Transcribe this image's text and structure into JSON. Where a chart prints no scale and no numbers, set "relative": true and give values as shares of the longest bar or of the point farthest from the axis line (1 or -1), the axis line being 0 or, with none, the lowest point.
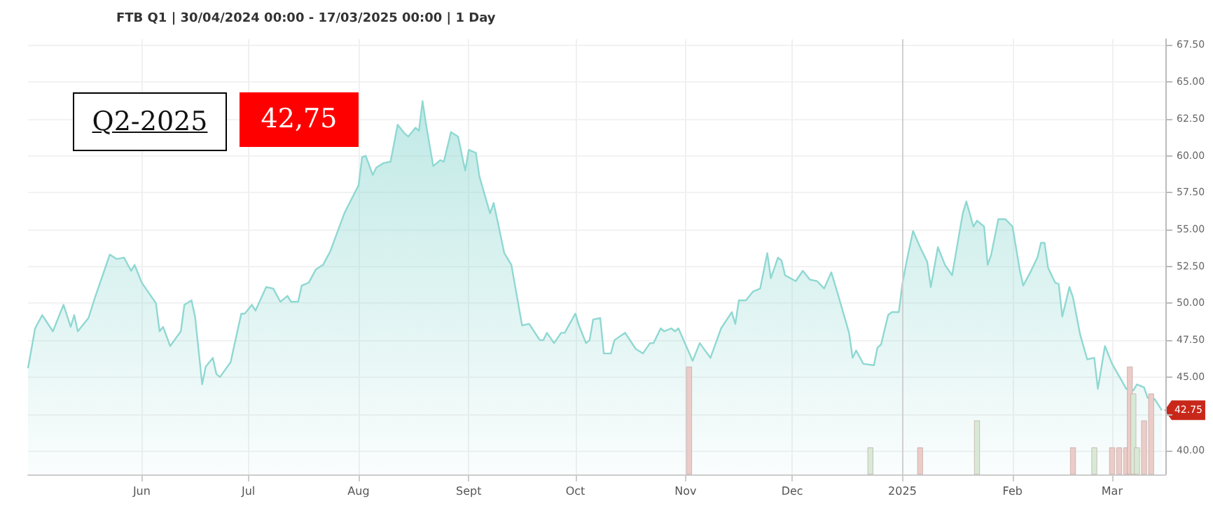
{
  "chart_data": [
    {
      "type": "area",
      "title": "FTB Q1 | 30/04/2024 00:00 - 17/03/2025 00:00 | 1 Day",
      "annotations": [
        "Q2-2025",
        "42,75",
        {
          "text": "42.75",
          "x": "2025-03-15",
          "y": 42.75
        }
      ],
      "xlim": [
        "2024-04-30",
        "2025-03-16"
      ],
      "xticks": [
        {
          "value": "2024-06-01",
          "label": "Jun"
        },
        {
          "value": "2024-07-01",
          "label": "Jul"
        },
        {
          "value": "2024-08-01",
          "label": "Aug"
        },
        {
          "value": "2024-09-01",
          "label": "Sept"
        },
        {
          "value": "2024-10-01",
          "label": "Oct"
        },
        {
          "value": "2024-11-01",
          "label": "Nov"
        },
        {
          "value": "2024-12-01",
          "label": "Dec"
        },
        {
          "value": "2025-01-01",
          "label": "2025"
        },
        {
          "value": "2025-02-01",
          "label": "Feb"
        },
        {
          "value": "2025-03-01",
          "label": "Mar"
        }
      ],
      "ylim": [
        38.4,
        67.9
      ],
      "yticks": [
        {
          "value": 40,
          "label": "40.00"
        },
        {
          "value": 42.5,
          "label": null
        },
        {
          "value": 45,
          "label": "45.00"
        },
        {
          "value": 47.5,
          "label": "47.50"
        },
        {
          "value": 50,
          "label": "50.00"
        },
        {
          "value": 52.5,
          "label": "52.50"
        },
        {
          "value": 55,
          "label": "55.00"
        },
        {
          "value": 57.5,
          "label": "57.50"
        },
        {
          "value": 60,
          "label": "60.00"
        },
        {
          "value": 62.5,
          "label": "62.50"
        },
        {
          "value": 65,
          "label": "65.00"
        },
        {
          "value": 67.5,
          "label": "67.50"
        }
      ],
      "grid": true,
      "ref_lines": [
        {
          "axis": "x",
          "value": "2025-01-01",
          "color": "#d0d0d0"
        }
      ],
      "series": [
        {
          "color": "#8fd8d2",
          "x": [
            "2024-04-30",
            "2024-05-02",
            "2024-05-04",
            "2024-05-07",
            "2024-05-10",
            "2024-05-12",
            "2024-05-13",
            "2024-05-14",
            "2024-05-17",
            "2024-05-19",
            "2024-05-23",
            "2024-05-25",
            "2024-05-27",
            "2024-05-29",
            "2024-05-30",
            "2024-06-01",
            "2024-06-05",
            "2024-06-06",
            "2024-06-07",
            "2024-06-09",
            "2024-06-12",
            "2024-06-13",
            "2024-06-15",
            "2024-06-16",
            "2024-06-18",
            "2024-06-19",
            "2024-06-21",
            "2024-06-22",
            "2024-06-23",
            "2024-06-26",
            "2024-06-29",
            "2024-06-30",
            "2024-07-02",
            "2024-07-03",
            "2024-07-06",
            "2024-07-08",
            "2024-07-10",
            "2024-07-12",
            "2024-07-13",
            "2024-07-15",
            "2024-07-16",
            "2024-07-18",
            "2024-07-20",
            "2024-07-22",
            "2024-07-24",
            "2024-07-28",
            "2024-08-01",
            "2024-08-02",
            "2024-08-03",
            "2024-08-05",
            "2024-08-06",
            "2024-08-08",
            "2024-08-10",
            "2024-08-12",
            "2024-08-14",
            "2024-08-15",
            "2024-08-17",
            "2024-08-18",
            "2024-08-19",
            "2024-08-20",
            "2024-08-22",
            "2024-08-24",
            "2024-08-25",
            "2024-08-27",
            "2024-08-29",
            "2024-08-31",
            "2024-09-01",
            "2024-09-03",
            "2024-09-04",
            "2024-09-07",
            "2024-09-08",
            "2024-09-09",
            "2024-09-11",
            "2024-09-13",
            "2024-09-16",
            "2024-09-18",
            "2024-09-21",
            "2024-09-22",
            "2024-09-23",
            "2024-09-25",
            "2024-09-27",
            "2024-09-28",
            "2024-10-01",
            "2024-10-02",
            "2024-10-04",
            "2024-10-05",
            "2024-10-06",
            "2024-10-08",
            "2024-10-09",
            "2024-10-11",
            "2024-10-12",
            "2024-10-15",
            "2024-10-18",
            "2024-10-20",
            "2024-10-22",
            "2024-10-23",
            "2024-10-25",
            "2024-10-26",
            "2024-10-28",
            "2024-10-29",
            "2024-10-30",
            "2024-11-03",
            "2024-11-05",
            "2024-11-08",
            "2024-11-11",
            "2024-11-14",
            "2024-11-15",
            "2024-11-16",
            "2024-11-18",
            "2024-11-20",
            "2024-11-22",
            "2024-11-24",
            "2024-11-25",
            "2024-11-27",
            "2024-11-28",
            "2024-11-29",
            "2024-12-02",
            "2024-12-04",
            "2024-12-06",
            "2024-12-08",
            "2024-12-10",
            "2024-12-12",
            "2024-12-14",
            "2024-12-17",
            "2024-12-18",
            "2024-12-19",
            "2024-12-21",
            "2024-12-24",
            "2024-12-25",
            "2024-12-26",
            "2024-12-28",
            "2024-12-29",
            "2024-12-31",
            "2025-01-01",
            "2025-01-02",
            "2025-01-04",
            "2025-01-06",
            "2025-01-08",
            "2025-01-09",
            "2025-01-11",
            "2025-01-13",
            "2025-01-15",
            "2025-01-18",
            "2025-01-19",
            "2025-01-21",
            "2025-01-22",
            "2025-01-24",
            "2025-01-25",
            "2025-01-26",
            "2025-01-28",
            "2025-01-30",
            "2025-02-01",
            "2025-02-03",
            "2025-02-04",
            "2025-02-06",
            "2025-02-08",
            "2025-02-09",
            "2025-02-10",
            "2025-02-11",
            "2025-02-13",
            "2025-02-14",
            "2025-02-15",
            "2025-02-17",
            "2025-02-18",
            "2025-02-20",
            "2025-02-22",
            "2025-02-24",
            "2025-02-25",
            "2025-02-27",
            "2025-03-01",
            "2025-03-05",
            "2025-03-07",
            "2025-03-08",
            "2025-03-10",
            "2025-03-11",
            "2025-03-13",
            "2025-03-15"
          ],
          "values": [
            45.6,
            48.3,
            49.2,
            48.1,
            49.9,
            48.4,
            49.2,
            48.1,
            49.0,
            50.5,
            53.3,
            53.0,
            53.1,
            52.2,
            52.6,
            51.4,
            50.0,
            48.1,
            48.4,
            47.1,
            48.1,
            49.9,
            50.2,
            49.1,
            44.5,
            45.7,
            46.3,
            45.2,
            45.0,
            46.0,
            49.3,
            49.3,
            49.9,
            49.5,
            51.1,
            51.0,
            50.1,
            50.5,
            50.1,
            50.1,
            51.2,
            51.4,
            52.3,
            52.6,
            53.5,
            56.1,
            58.0,
            59.9,
            60.0,
            58.7,
            59.2,
            59.5,
            59.6,
            62.1,
            61.5,
            61.3,
            61.9,
            61.7,
            63.7,
            62.1,
            59.3,
            59.7,
            59.6,
            61.6,
            61.3,
            59.0,
            60.4,
            60.2,
            58.6,
            56.1,
            56.8,
            55.7,
            53.4,
            52.6,
            48.5,
            48.6,
            47.5,
            47.5,
            48.0,
            47.3,
            48.0,
            48.0,
            49.3,
            48.5,
            47.3,
            47.5,
            48.9,
            49.0,
            46.6,
            46.6,
            47.5,
            48.0,
            46.9,
            46.6,
            47.3,
            47.3,
            48.3,
            48.1,
            48.3,
            48.1,
            48.3,
            46.1,
            47.3,
            46.3,
            48.3,
            49.4,
            48.6,
            50.2,
            50.2,
            50.8,
            51.0,
            53.4,
            51.7,
            53.1,
            52.9,
            51.9,
            51.5,
            52.2,
            51.6,
            51.5,
            51.0,
            52.1,
            50.5,
            48.0,
            46.3,
            46.8,
            45.9,
            45.8,
            47.0,
            47.2,
            49.2,
            49.4,
            49.4,
            51.3,
            52.6,
            54.9,
            53.8,
            52.8,
            51.1,
            53.8,
            52.6,
            51.9,
            56.1,
            56.9,
            55.2,
            55.6,
            55.2,
            52.6,
            53.3,
            55.7,
            55.7,
            55.2,
            52.3,
            51.2,
            52.1,
            53.1,
            54.1,
            54.1,
            52.4,
            51.4,
            51.3,
            49.1,
            51.1,
            50.4,
            47.9,
            46.2,
            46.3,
            44.2,
            47.1,
            45.9,
            44.2,
            44.1,
            44.5,
            44.3,
            43.6,
            43.5,
            42.75
          ]
        }
      ]
    },
    {
      "type": "bar",
      "relative": true,
      "tick_labels": false,
      "xlim": [
        "2024-04-30",
        "2025-03-16"
      ],
      "x": [
        "2024-11-02",
        "2024-12-23",
        "2025-01-06",
        "2025-01-22",
        "2025-02-18",
        "2025-02-24",
        "2025-03-01",
        "2025-03-03",
        "2025-03-05",
        "2025-03-06",
        "2025-03-07",
        "2025-03-08",
        "2025-03-10",
        "2025-03-12"
      ],
      "values": [
        1,
        0.25,
        0.25,
        0.5,
        0.25,
        0.25,
        0.25,
        0.25,
        0.25,
        1,
        0.75,
        0.25,
        0.5,
        0.75
      ],
      "colors": [
        "#ecccc8",
        "#d8ead6",
        "#ecccc8",
        "#d8ead6",
        "#ecccc8",
        "#d8ead6",
        "#ecccc8",
        "#ecccc8",
        "#ecccc8",
        "#ecccc8",
        "#d8ead6",
        "#d8ead6",
        "#ecccc8",
        "#ecccc8"
      ]
    }
  ]
}
